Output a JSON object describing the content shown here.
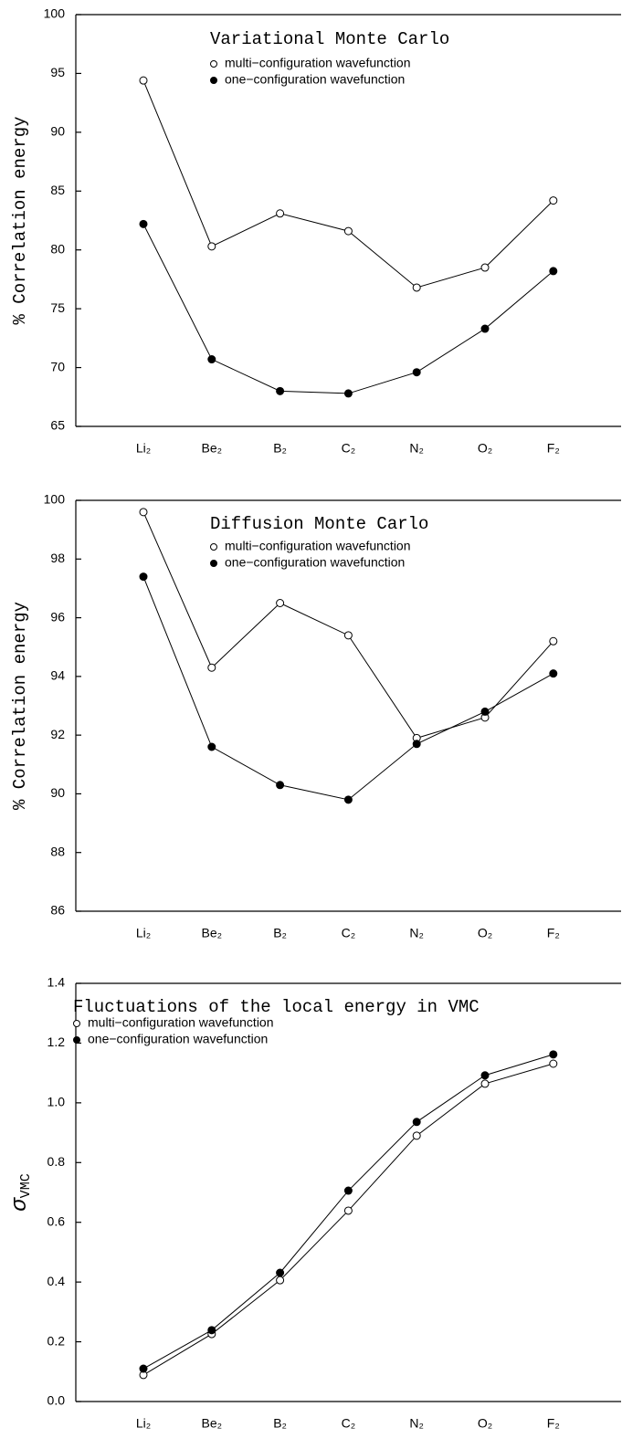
{
  "chart_data": [
    {
      "type": "line",
      "title": "Variational Monte Carlo",
      "ylabel": "% Correlation energy",
      "categories": [
        "Li₂",
        "Be₂",
        "B₂",
        "C₂",
        "N₂",
        "O₂",
        "F₂"
      ],
      "series": [
        {
          "name": "multi−configuration wavefunction",
          "marker": "open",
          "color": "#000000",
          "values": [
            94.4,
            80.3,
            83.1,
            81.6,
            76.8,
            78.5,
            84.2
          ]
        },
        {
          "name": "one−configuration wavefunction",
          "marker": "filled",
          "color": "#000000",
          "values": [
            82.2,
            70.7,
            68.0,
            67.8,
            69.6,
            73.3,
            78.2
          ]
        }
      ],
      "ylim": [
        65,
        100
      ],
      "yticks": [
        65,
        70,
        75,
        80,
        85,
        90,
        95,
        100
      ]
    },
    {
      "type": "line",
      "title": "Diffusion Monte Carlo",
      "ylabel": "% Correlation energy",
      "categories": [
        "Li₂",
        "Be₂",
        "B₂",
        "C₂",
        "N₂",
        "O₂",
        "F₂"
      ],
      "series": [
        {
          "name": "multi−configuration wavefunction",
          "marker": "open",
          "color": "#000000",
          "values": [
            99.6,
            94.3,
            96.5,
            95.4,
            91.9,
            92.6,
            95.2
          ]
        },
        {
          "name": "one−configuration wavefunction",
          "marker": "filled",
          "color": "#000000",
          "values": [
            97.4,
            91.6,
            90.3,
            89.8,
            91.7,
            92.8,
            94.1
          ]
        }
      ],
      "ylim": [
        86,
        100
      ],
      "yticks": [
        86,
        88,
        90,
        92,
        94,
        96,
        98,
        100
      ]
    },
    {
      "type": "line",
      "title": "Fluctuations of the local energy in VMC",
      "ylabel": {
        "symbol": "σ",
        "subscript": "VMC"
      },
      "categories": [
        "Li₂",
        "Be₂",
        "B₂",
        "C₂",
        "N₂",
        "O₂",
        "F₂"
      ],
      "series": [
        {
          "name": "multi−configuration wavefunction",
          "marker": "open",
          "color": "#000000",
          "values": [
            0.089,
            0.226,
            0.406,
            0.639,
            0.89,
            1.064,
            1.131
          ]
        },
        {
          "name": "one−configuration wavefunction",
          "marker": "filled",
          "color": "#000000",
          "values": [
            0.11,
            0.239,
            0.431,
            0.706,
            0.936,
            1.092,
            1.162
          ]
        }
      ],
      "ylim": [
        0,
        1.4
      ],
      "yticks": [
        {
          "value": 0,
          "label": "0.0"
        },
        0.2,
        0.4,
        0.6,
        0.8,
        {
          "value": 1,
          "label": "1.0"
        },
        1.2,
        1.4
      ]
    }
  ]
}
